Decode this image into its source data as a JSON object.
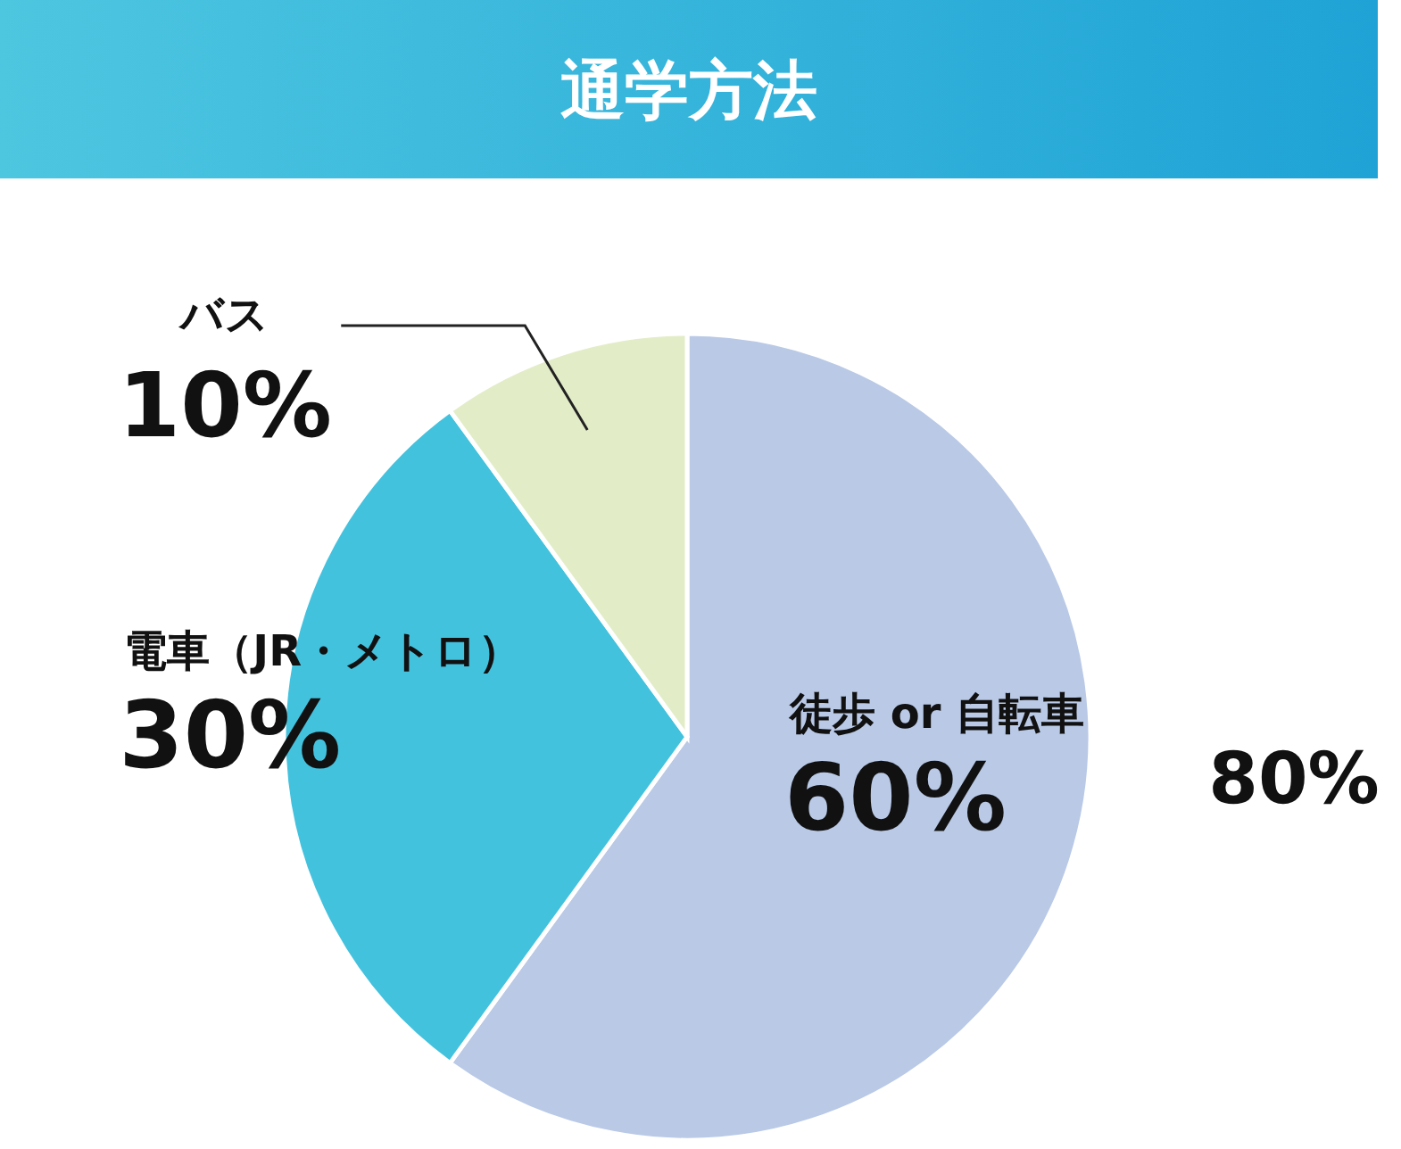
{
  "chart_data": {
    "type": "pie",
    "title": "通学方法",
    "categories": [
      "徒歩 or 自転車",
      "電車（JR・メトロ）",
      "バス"
    ],
    "values": [
      60,
      30,
      10
    ],
    "value_labels": [
      "60%",
      "30%",
      "10%"
    ],
    "colors": [
      "#b9c9e6",
      "#43c2de",
      "#e2edc8"
    ],
    "annotations": [
      "80%"
    ]
  }
}
